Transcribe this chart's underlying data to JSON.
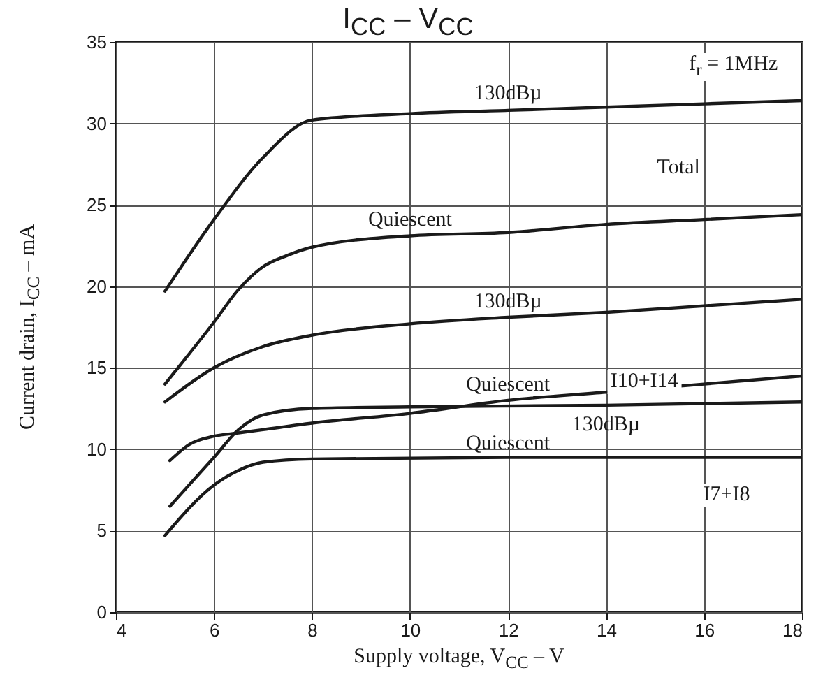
{
  "chart_data": {
    "type": "line",
    "title": "I$_{CC}$ – V$_{CC}$",
    "xlabel": "Supply voltage, V$_{CC}$  –  V",
    "ylabel": "Current drain, I$_{CC}$  –  mA",
    "xlim": [
      4,
      18
    ],
    "xticks": [
      4,
      6,
      8,
      10,
      12,
      14,
      16,
      18
    ],
    "ylim": [
      0,
      35
    ],
    "yticks": [
      0,
      5,
      10,
      15,
      20,
      25,
      30,
      35
    ],
    "grid": true,
    "legend": false,
    "line_style": "solid",
    "annotations": [
      "f$_{r}$ = 1MHz",
      "Total",
      "I10+I14",
      "I7+I8"
    ],
    "series": [
      {
        "name": "130dBµ",
        "color": "#1a1a1a",
        "x": [
          5,
          6,
          7,
          8,
          10,
          12,
          14,
          16,
          18
        ],
        "values": [
          19.7,
          24.1,
          27.9,
          30.2,
          30.6,
          30.8,
          31.0,
          31.2,
          31.4
        ]
      },
      {
        "name": "Quiescent",
        "color": "#1a1a1a",
        "x": [
          5,
          6,
          6.5,
          7,
          7.5,
          8,
          10,
          12,
          14,
          16,
          18
        ],
        "values": [
          14.0,
          17.8,
          19.8,
          21.2,
          21.9,
          22.4,
          23.1,
          23.3,
          23.8,
          24.1,
          24.4
        ]
      },
      {
        "name": "130dBµ",
        "color": "#1a1a1a",
        "x": [
          5,
          6,
          7,
          8,
          10,
          12,
          14,
          16,
          18
        ],
        "values": [
          12.9,
          15.0,
          16.3,
          17.0,
          17.7,
          18.1,
          18.4,
          18.8,
          19.2
        ]
      },
      {
        "name": "Quiescent",
        "color": "#1a1a1a",
        "x": [
          5.1,
          5.5,
          6,
          6.5,
          7,
          8,
          10,
          12,
          14,
          16,
          18
        ],
        "values": [
          9.3,
          10.3,
          10.8,
          11.0,
          11.2,
          11.6,
          12.2,
          13.0,
          13.5,
          14.0,
          14.5
        ]
      },
      {
        "name": "130dBµ",
        "color": "#1a1a1a",
        "x": [
          5.1,
          6,
          6.5,
          7,
          8,
          10,
          14,
          18
        ],
        "values": [
          6.5,
          9.5,
          11.2,
          12.1,
          12.5,
          12.6,
          12.7,
          12.9
        ]
      },
      {
        "name": "Quiescent",
        "color": "#1a1a1a",
        "x": [
          5,
          6,
          6.5,
          7,
          8,
          12,
          18
        ],
        "values": [
          4.7,
          7.8,
          8.7,
          9.2,
          9.4,
          9.5,
          9.5
        ]
      }
    ]
  }
}
